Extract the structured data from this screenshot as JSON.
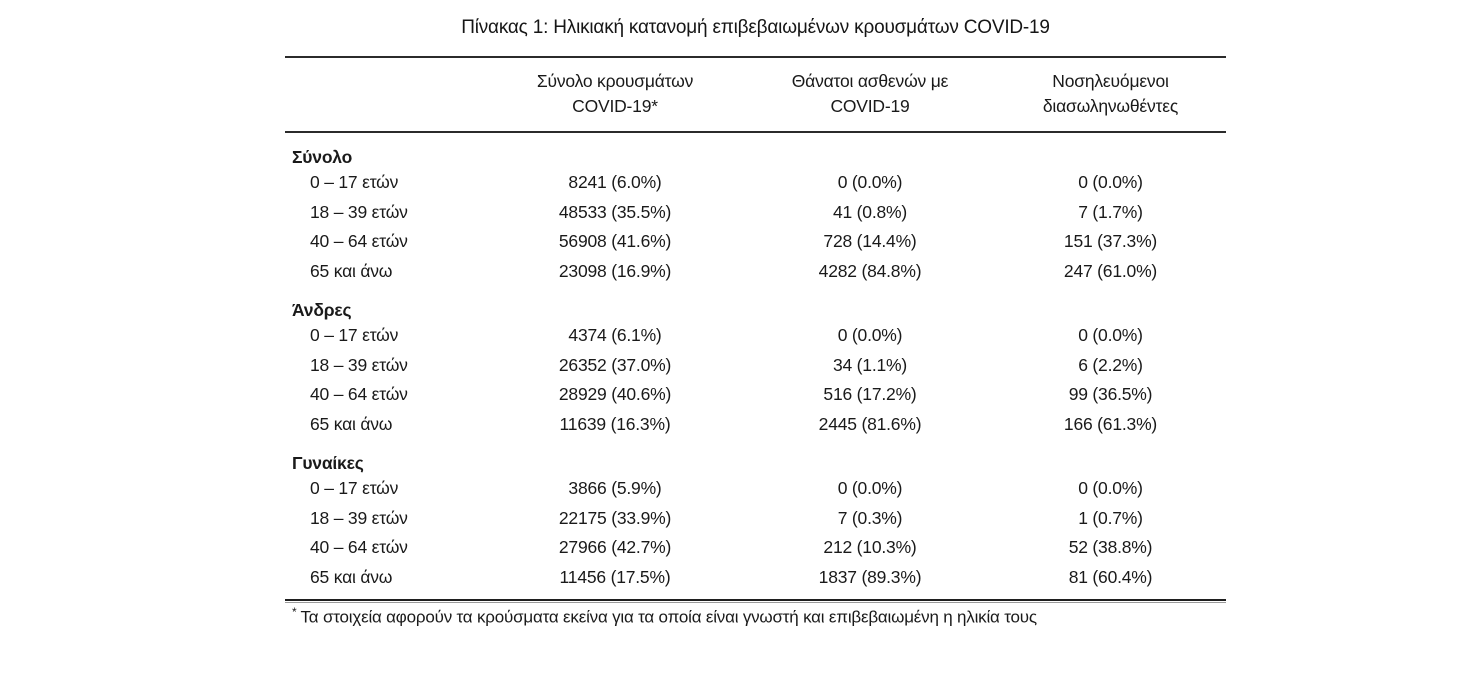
{
  "title": "Πίνακας 1: Ηλικιακή κατανομή επιβεβαιωμένων κρουσμάτων COVID-19",
  "table": {
    "columns": [
      {
        "line1": "Σύνολο κρουσμάτων",
        "line2": "COVID-19*"
      },
      {
        "line1": "Θάνατοι ασθενών με",
        "line2": "COVID-19"
      },
      {
        "line1": "Νοσηλευόμενοι",
        "line2": "διασωληνωθέντες"
      }
    ],
    "sections": [
      {
        "name": "Σύνολο",
        "rows": [
          {
            "label": "0 – 17 ετών",
            "cases": "8241 (6.0%)",
            "deaths": "0 (0.0%)",
            "intubated": "0 (0.0%)"
          },
          {
            "label": "18 – 39 ετών",
            "cases": "48533 (35.5%)",
            "deaths": "41 (0.8%)",
            "intubated": "7 (1.7%)"
          },
          {
            "label": "40 – 64 ετών",
            "cases": "56908 (41.6%)",
            "deaths": "728 (14.4%)",
            "intubated": "151 (37.3%)"
          },
          {
            "label": "65 και άνω",
            "cases": "23098 (16.9%)",
            "deaths": "4282 (84.8%)",
            "intubated": "247 (61.0%)"
          }
        ]
      },
      {
        "name": "Άνδρες",
        "rows": [
          {
            "label": "0 – 17 ετών",
            "cases": "4374 (6.1%)",
            "deaths": "0 (0.0%)",
            "intubated": "0 (0.0%)"
          },
          {
            "label": "18 – 39 ετών",
            "cases": "26352 (37.0%)",
            "deaths": "34 (1.1%)",
            "intubated": "6 (2.2%)"
          },
          {
            "label": "40 – 64 ετών",
            "cases": "28929 (40.6%)",
            "deaths": "516 (17.2%)",
            "intubated": "99 (36.5%)"
          },
          {
            "label": "65 και άνω",
            "cases": "11639 (16.3%)",
            "deaths": "2445 (81.6%)",
            "intubated": "166 (61.3%)"
          }
        ]
      },
      {
        "name": "Γυναίκες",
        "rows": [
          {
            "label": "0 – 17 ετών",
            "cases": "3866 (5.9%)",
            "deaths": "0 (0.0%)",
            "intubated": "0 (0.0%)"
          },
          {
            "label": "18 – 39 ετών",
            "cases": "22175 (33.9%)",
            "deaths": "7 (0.3%)",
            "intubated": "1 (0.7%)"
          },
          {
            "label": "40 – 64 ετών",
            "cases": "27966 (42.7%)",
            "deaths": "212 (10.3%)",
            "intubated": "52 (38.8%)"
          },
          {
            "label": "65 και άνω",
            "cases": "11456 (17.5%)",
            "deaths": "1837 (89.3%)",
            "intubated": "81 (60.4%)"
          }
        ]
      }
    ],
    "footnote_marker": "*",
    "footnote": "Τα στοιχεία αφορούν τα κρούσματα εκείνα για τα οποία είναι γνωστή και επιβεβαιωμένη η ηλικία τους"
  }
}
